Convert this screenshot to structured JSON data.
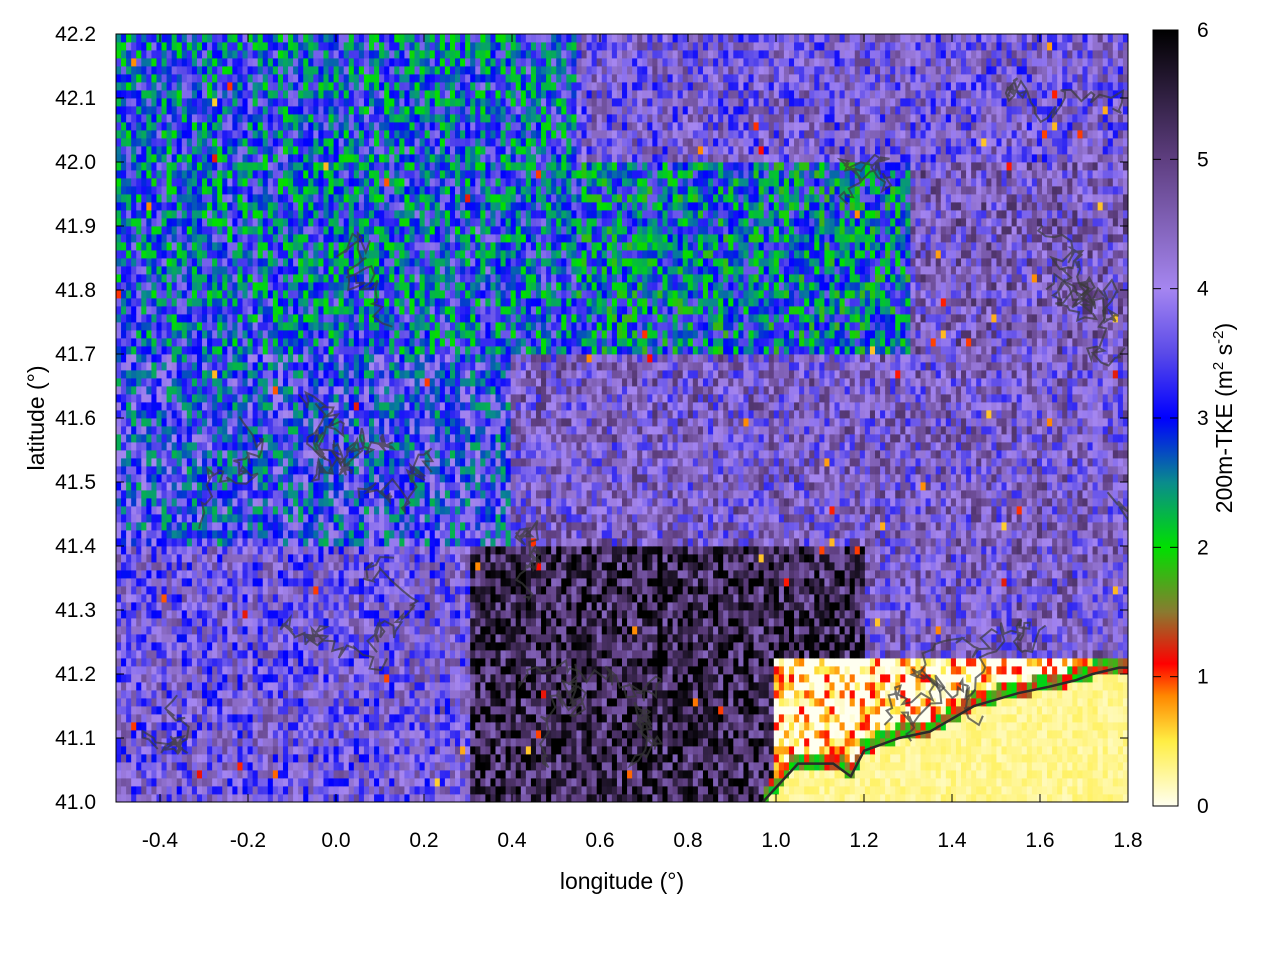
{
  "chart_data": {
    "type": "heatmap",
    "title": "",
    "xlabel": "longitude (°)",
    "ylabel": "latitude (°)",
    "colorbar_label_main": "200m-TKE (m",
    "colorbar_label_sup1": "2",
    "colorbar_label_mid": " s",
    "colorbar_label_sup2": "-2",
    "colorbar_label_end": ")",
    "xlim": [
      -0.5,
      1.8
    ],
    "ylim": [
      41.0,
      42.2
    ],
    "zlim": [
      0,
      6
    ],
    "x_ticks": [
      "-0.4",
      "-0.2",
      "0.0",
      "0.2",
      "0.4",
      "0.6",
      "0.8",
      "1.0",
      "1.2",
      "1.4",
      "1.6",
      "1.8"
    ],
    "x_tick_values": [
      -0.4,
      -0.2,
      0.0,
      0.2,
      0.4,
      0.6,
      0.8,
      1.0,
      1.2,
      1.4,
      1.6,
      1.8
    ],
    "y_ticks": [
      "41.0",
      "41.1",
      "41.2",
      "41.3",
      "41.4",
      "41.5",
      "41.6",
      "41.7",
      "41.8",
      "41.9",
      "42.0",
      "42.1",
      "42.2"
    ],
    "y_tick_values": [
      41.0,
      41.1,
      41.2,
      41.3,
      41.4,
      41.5,
      41.6,
      41.7,
      41.8,
      41.9,
      42.0,
      42.1,
      42.2
    ],
    "colorbar_ticks": [
      "0",
      "1",
      "2",
      "3",
      "4",
      "5",
      "6"
    ],
    "colorbar_tick_values": [
      0,
      1,
      2,
      3,
      4,
      5,
      6
    ],
    "colormap": [
      {
        "v": 0.0,
        "c": "#fffff0"
      },
      {
        "v": 0.5,
        "c": "#ffee44"
      },
      {
        "v": 0.85,
        "c": "#ff8800"
      },
      {
        "v": 1.1,
        "c": "#ff0000"
      },
      {
        "v": 1.5,
        "c": "#8a7a30"
      },
      {
        "v": 2.0,
        "c": "#00e000"
      },
      {
        "v": 2.5,
        "c": "#0a8c8c"
      },
      {
        "v": 3.0,
        "c": "#0000ff"
      },
      {
        "v": 3.5,
        "c": "#5a4ae8"
      },
      {
        "v": 4.0,
        "c": "#a586f0"
      },
      {
        "v": 5.0,
        "c": "#5e3e80"
      },
      {
        "v": 6.0,
        "c": "#000000"
      }
    ],
    "field_regions": [
      {
        "lon": [
          -0.5,
          0.55
        ],
        "lat": [
          41.7,
          42.2
        ],
        "level": 2.9
      },
      {
        "lon": [
          0.55,
          1.3
        ],
        "lat": [
          41.7,
          42.0
        ],
        "level": 2.7
      },
      {
        "lon": [
          0.55,
          1.8
        ],
        "lat": [
          42.0,
          42.2
        ],
        "level": 4.0
      },
      {
        "lon": [
          1.3,
          1.8
        ],
        "lat": [
          41.7,
          42.0
        ],
        "level": 4.3
      },
      {
        "lon": [
          -0.5,
          0.4
        ],
        "lat": [
          41.4,
          41.7
        ],
        "level": 3.2
      },
      {
        "lon": [
          0.4,
          1.8
        ],
        "lat": [
          41.4,
          41.7
        ],
        "level": 4.2
      },
      {
        "lon": [
          -0.5,
          0.3
        ],
        "lat": [
          41.0,
          41.4
        ],
        "level": 3.9
      },
      {
        "lon": [
          0.3,
          1.2
        ],
        "lat": [
          41.0,
          41.4
        ],
        "level": 5.4
      },
      {
        "lon": [
          1.2,
          1.8
        ],
        "lat": [
          41.2,
          41.4
        ],
        "level": 4.2
      },
      {
        "lon": [
          1.0,
          1.8
        ],
        "lat": [
          41.0,
          41.22
        ],
        "level": 0.2
      }
    ],
    "coastline": [
      [
        0.97,
        41.0
      ],
      [
        1.05,
        41.06
      ],
      [
        1.13,
        41.06
      ],
      [
        1.17,
        41.04
      ],
      [
        1.2,
        41.08
      ],
      [
        1.28,
        41.1
      ],
      [
        1.35,
        41.11
      ],
      [
        1.45,
        41.15
      ],
      [
        1.55,
        41.17
      ],
      [
        1.62,
        41.18
      ],
      [
        1.68,
        41.19
      ],
      [
        1.72,
        41.2
      ],
      [
        1.78,
        41.21
      ],
      [
        1.8,
        41.21
      ]
    ],
    "grid": true
  }
}
